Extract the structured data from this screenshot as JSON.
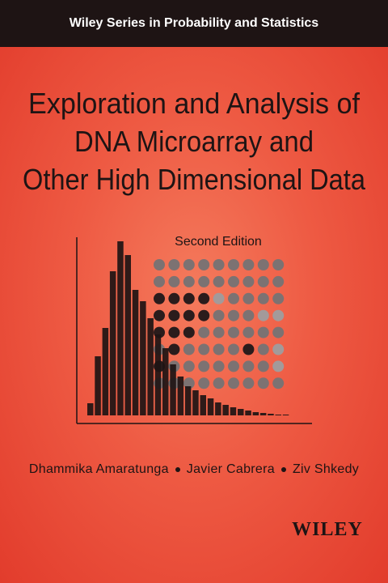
{
  "series": "Wiley Series in Probability and Statistics",
  "title": [
    "Exploration and Analysis of",
    "DNA Microarray and",
    "Other High Dimensional Data"
  ],
  "edition": "Second Edition",
  "authors": [
    "Dhammika Amaratunga",
    "Javier Cabrera",
    "Ziv Shkedy"
  ],
  "publisher": "WILEY"
}
